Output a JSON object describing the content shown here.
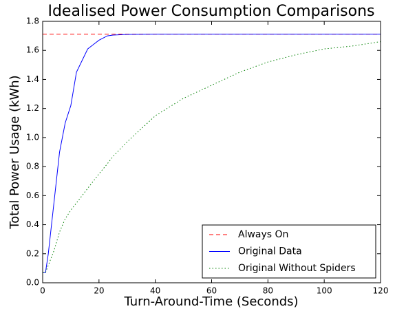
{
  "chart_data": {
    "type": "line",
    "title": "Idealised Power Consumption Comparisons",
    "xlabel": "Turn-Around-Time (Seconds)",
    "ylabel": "Total Power Usage (kWh)",
    "x": [
      0,
      1,
      2,
      4,
      6,
      8,
      10,
      12,
      14,
      16,
      18,
      20,
      23,
      25,
      30,
      40,
      50,
      60,
      70,
      80,
      90,
      100,
      110,
      120
    ],
    "series": [
      {
        "name": "Always On",
        "color": "#ff0000",
        "dash": "dashed",
        "values": [
          1.712,
          1.712,
          1.712,
          1.712,
          1.712,
          1.712,
          1.712,
          1.712,
          1.712,
          1.712,
          1.712,
          1.712,
          1.712,
          1.712,
          1.712,
          1.712,
          1.712,
          1.712,
          1.712,
          1.712,
          1.712,
          1.712,
          1.712,
          1.712
        ]
      },
      {
        "name": "Original Data",
        "color": "#0000ff",
        "dash": "solid",
        "values": [
          0.07,
          0.07,
          0.2,
          0.55,
          0.9,
          1.1,
          1.22,
          1.45,
          1.53,
          1.61,
          1.64,
          1.67,
          1.7,
          1.705,
          1.71,
          1.712,
          1.712,
          1.712,
          1.712,
          1.712,
          1.712,
          1.712,
          1.712,
          1.712
        ]
      },
      {
        "name": "Original Without Spiders",
        "color": "#008000",
        "dash": "dotted",
        "values": [
          0.07,
          0.07,
          0.12,
          0.22,
          0.35,
          0.44,
          0.5,
          0.55,
          0.6,
          0.65,
          0.7,
          0.75,
          0.82,
          0.87,
          0.97,
          1.15,
          1.27,
          1.36,
          1.45,
          1.52,
          1.57,
          1.61,
          1.63,
          1.66
        ]
      }
    ],
    "xlim": [
      0,
      120
    ],
    "xticks": [
      0,
      20,
      40,
      60,
      80,
      100,
      120
    ],
    "ylim": [
      0,
      1.8
    ],
    "yticks": [
      {
        "value": 0,
        "label": "0.0"
      },
      0.2,
      0.4,
      0.6,
      0.8,
      {
        "value": 1,
        "label": "1.0"
      },
      1.2,
      1.4,
      1.6,
      1.8
    ],
    "grid": false,
    "legend": "lower right"
  }
}
